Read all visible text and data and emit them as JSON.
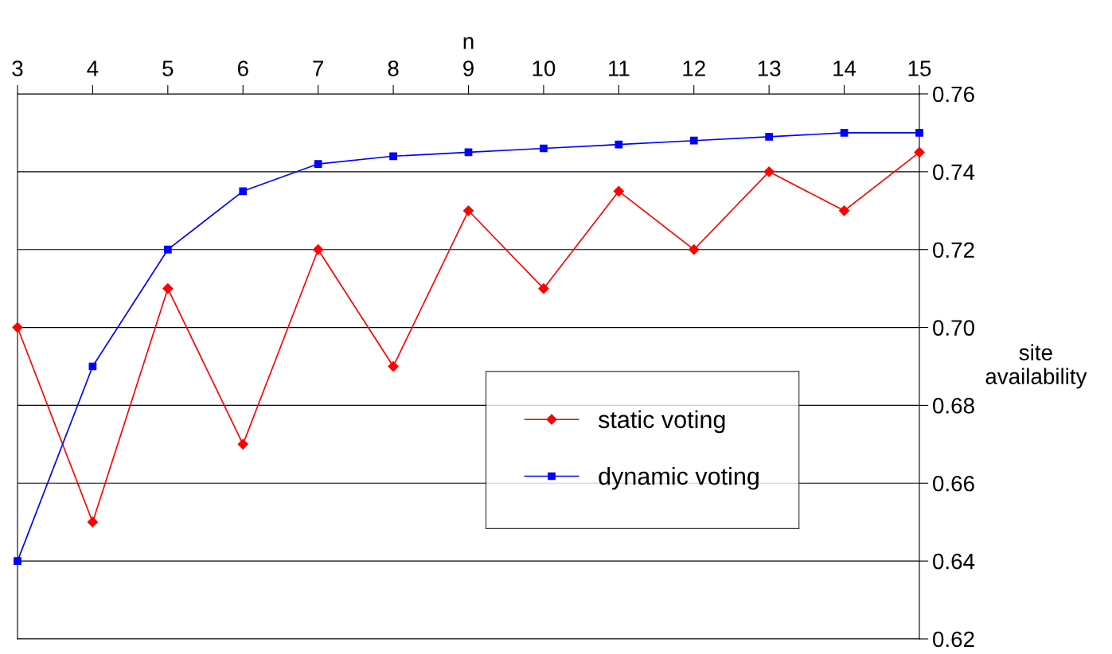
{
  "chart_data": {
    "type": "line",
    "xlabel": "n",
    "ylabel": "site\navailability",
    "x": [
      3,
      4,
      5,
      6,
      7,
      8,
      9,
      10,
      11,
      12,
      13,
      14,
      15
    ],
    "series": [
      {
        "name": "static voting",
        "color": "#ff0000",
        "marker": "diamond",
        "values": [
          0.7,
          0.65,
          0.71,
          0.67,
          0.72,
          0.69,
          0.73,
          0.71,
          0.735,
          0.72,
          0.74,
          0.73,
          0.745
        ]
      },
      {
        "name": "dynamic voting",
        "color": "#0000ff",
        "marker": "square",
        "values": [
          0.64,
          0.69,
          0.72,
          0.735,
          0.742,
          0.744,
          0.745,
          0.746,
          0.747,
          0.748,
          0.749,
          0.75,
          0.75
        ]
      }
    ],
    "xlim": [
      3,
      15
    ],
    "xticks": [
      3,
      4,
      5,
      6,
      7,
      8,
      9,
      10,
      11,
      12,
      13,
      14,
      15
    ],
    "ylim": [
      0.62,
      0.76
    ],
    "yticks": [
      {
        "value": 0.62,
        "label": "0.62"
      },
      {
        "value": 0.64,
        "label": "0.64"
      },
      {
        "value": 0.66,
        "label": "0.66"
      },
      {
        "value": 0.68,
        "label": "0.68"
      },
      {
        "value": 0.7,
        "label": "0.70"
      },
      {
        "value": 0.72,
        "label": "0.72"
      },
      {
        "value": 0.74,
        "label": "0.74"
      },
      {
        "value": 0.76,
        "label": "0.76"
      }
    ],
    "grid": "y",
    "legend": "bottom right",
    "line_style": "solid"
  }
}
